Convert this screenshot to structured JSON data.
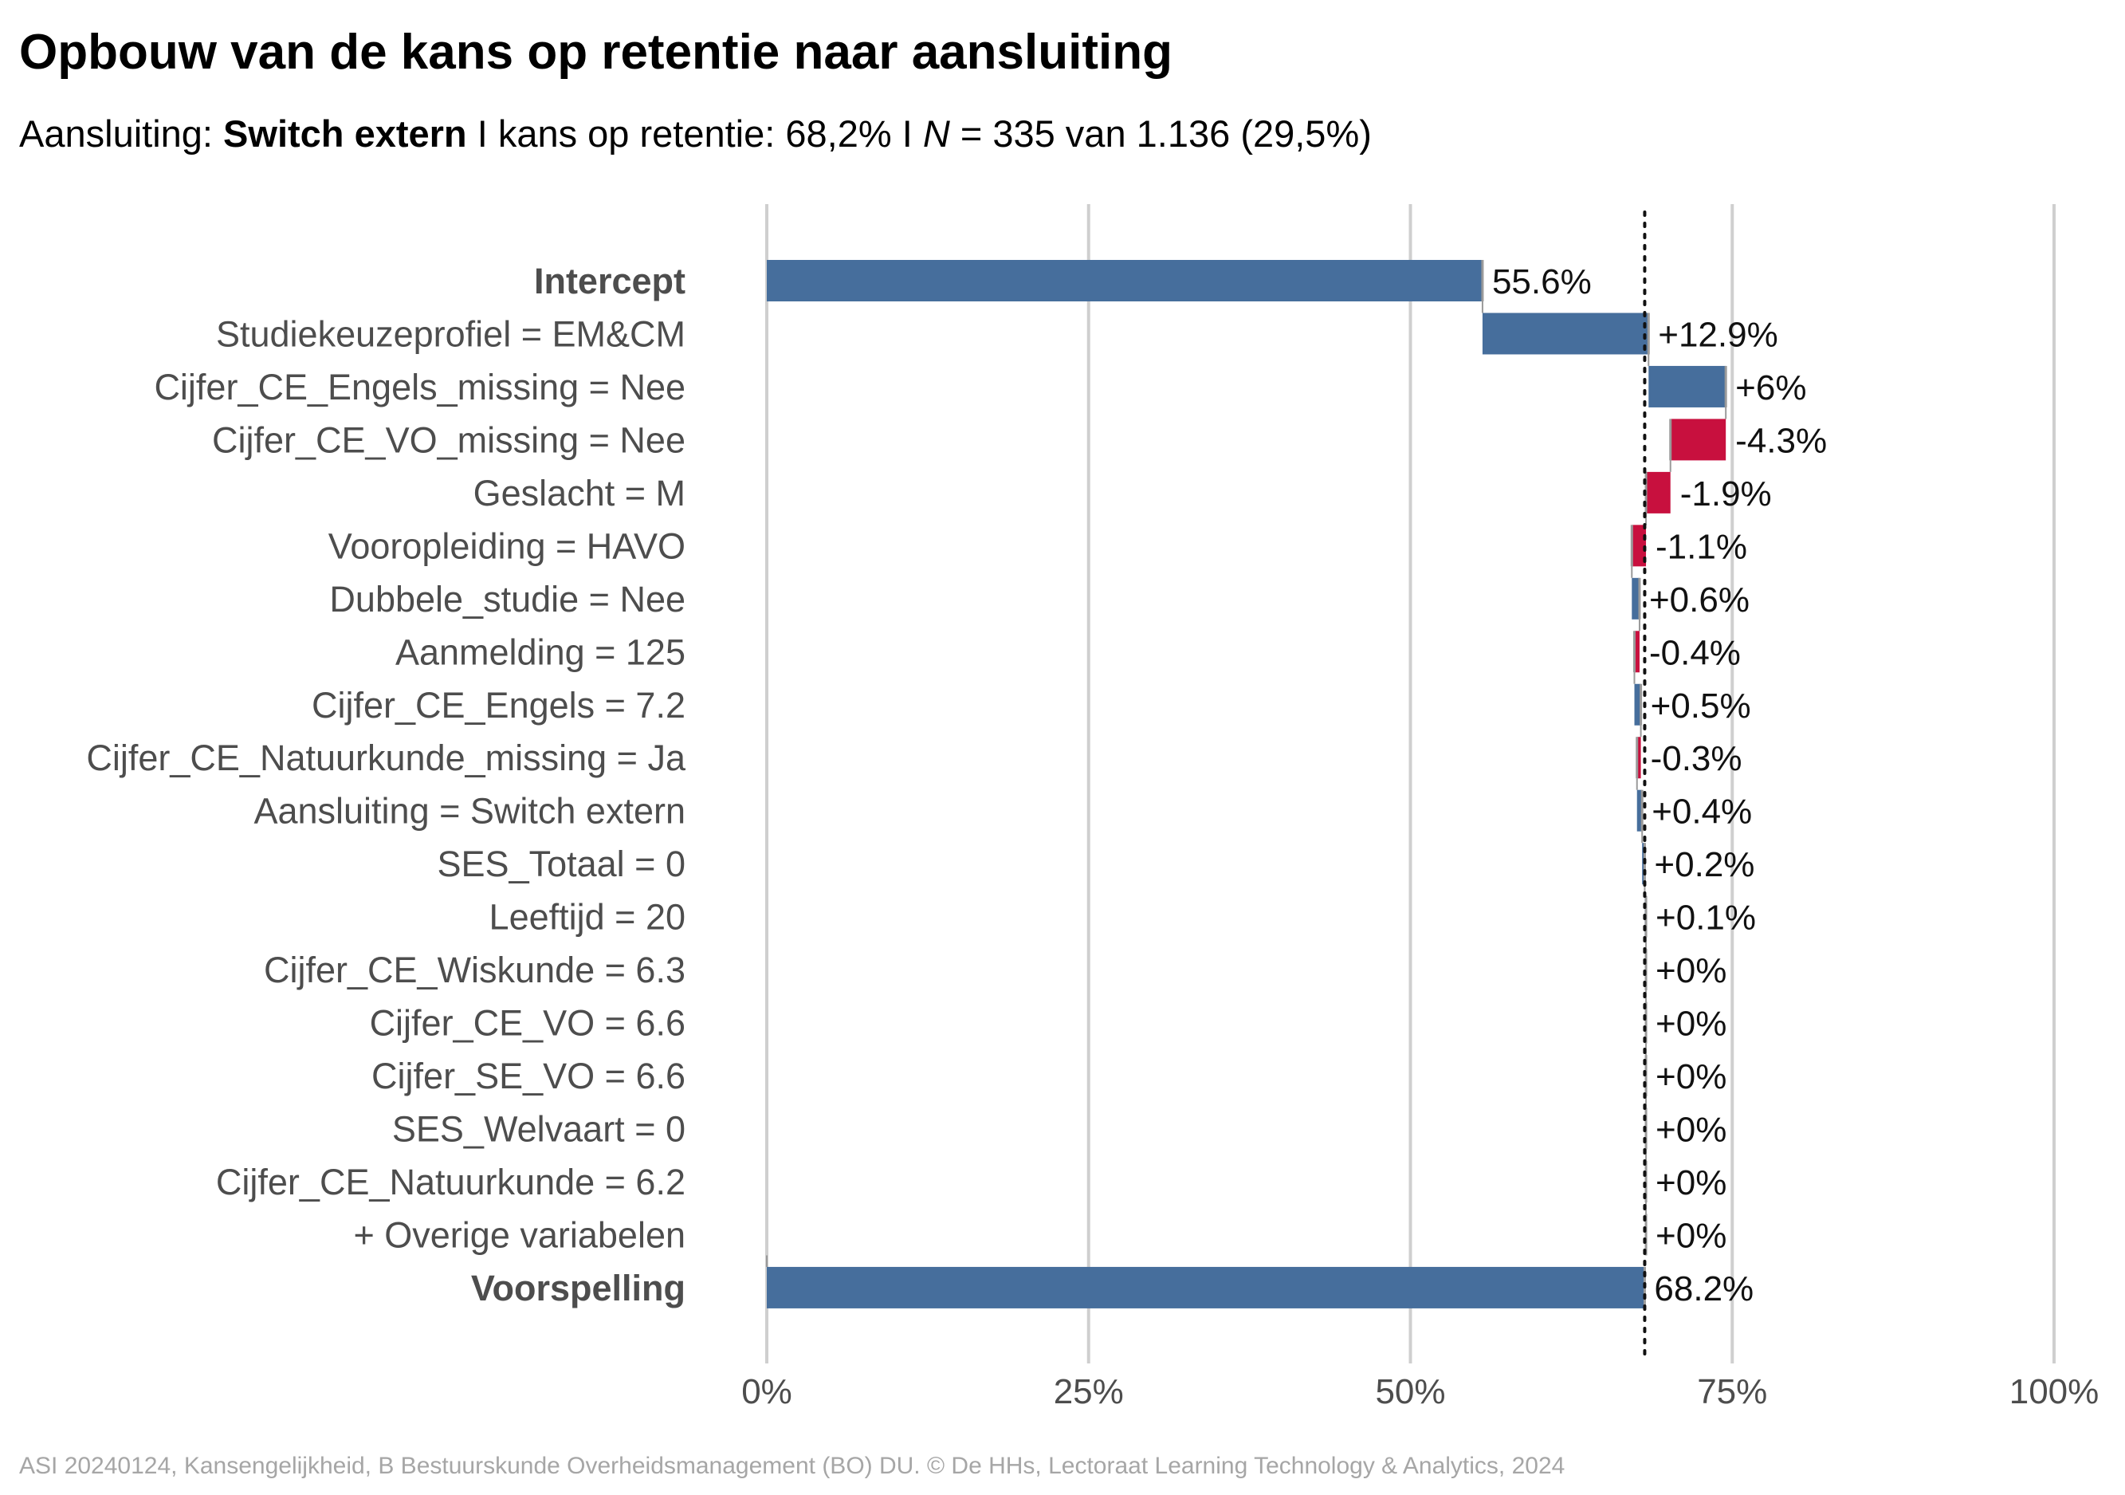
{
  "header": {
    "title": "Opbouw van de kans op retentie naar aansluiting",
    "subtitle_prefix": "Aansluiting: ",
    "subtitle_bold": "Switch extern",
    "subtitle_middle": " I kans op retentie: 68,2% I ",
    "subtitle_n": "N",
    "subtitle_suffix": " = 335 van 1.136 (29,5%)"
  },
  "caption": "ASI 20240124, Kansengelijkheid, B Bestuurskunde Overheidsmanagement (BO) DU. © De HHs, Lectoraat Learning Technology & Analytics, 2024",
  "colors": {
    "positive": "#466e9c",
    "negative": "#c8103e",
    "grid": "#cfcfcf",
    "label": "#4d4d4d"
  },
  "chart_data": {
    "type": "bar",
    "subtype": "waterfall",
    "orientation": "horizontal",
    "xlim": [
      0,
      100
    ],
    "x_ticks": [
      "0%",
      "25%",
      "50%",
      "75%",
      "100%"
    ],
    "x_tick_values": [
      0,
      25,
      50,
      75,
      100
    ],
    "reference_line": 68.2,
    "grid": true,
    "rows": [
      {
        "category": "Intercept",
        "value": 55.6,
        "label": "55.6%",
        "kind": "total",
        "bold": true
      },
      {
        "category": "Studiekeuzeprofiel = EM&CM",
        "value": 12.9,
        "label": "+12.9%",
        "kind": "step"
      },
      {
        "category": "Cijfer_CE_Engels_missing = Nee",
        "value": 6.0,
        "label": "+6%",
        "kind": "step"
      },
      {
        "category": "Cijfer_CE_VO_missing = Nee",
        "value": -4.3,
        "label": "-4.3%",
        "kind": "step"
      },
      {
        "category": "Geslacht = M",
        "value": -1.9,
        "label": "-1.9%",
        "kind": "step"
      },
      {
        "category": "Vooropleiding = HAVO",
        "value": -1.1,
        "label": "-1.1%",
        "kind": "step"
      },
      {
        "category": "Dubbele_studie = Nee",
        "value": 0.6,
        "label": "+0.6%",
        "kind": "step"
      },
      {
        "category": "Aanmelding = 125",
        "value": -0.4,
        "label": "-0.4%",
        "kind": "step"
      },
      {
        "category": "Cijfer_CE_Engels = 7.2",
        "value": 0.5,
        "label": "+0.5%",
        "kind": "step"
      },
      {
        "category": "Cijfer_CE_Natuurkunde_missing = Ja",
        "value": -0.3,
        "label": "-0.3%",
        "kind": "step"
      },
      {
        "category": "Aansluiting = Switch extern",
        "value": 0.4,
        "label": "+0.4%",
        "kind": "step"
      },
      {
        "category": "SES_Totaal = 0",
        "value": 0.2,
        "label": "+0.2%",
        "kind": "step"
      },
      {
        "category": "Leeftijd = 20",
        "value": 0.1,
        "label": "+0.1%",
        "kind": "step"
      },
      {
        "category": "Cijfer_CE_Wiskunde = 6.3",
        "value": 0.0,
        "label": "+0%",
        "kind": "step"
      },
      {
        "category": "Cijfer_CE_VO = 6.6",
        "value": 0.0,
        "label": "+0%",
        "kind": "step"
      },
      {
        "category": "Cijfer_SE_VO = 6.6",
        "value": 0.0,
        "label": "+0%",
        "kind": "step"
      },
      {
        "category": "SES_Welvaart = 0",
        "value": 0.0,
        "label": "+0%",
        "kind": "step"
      },
      {
        "category": "Cijfer_CE_Natuurkunde = 6.2",
        "value": 0.0,
        "label": "+0%",
        "kind": "step"
      },
      {
        "category": "+ Overige variabelen",
        "value": 0.0,
        "label": "+0%",
        "kind": "step"
      },
      {
        "category": "Voorspelling",
        "value": 68.2,
        "label": "68.2%",
        "kind": "total",
        "bold": true
      }
    ]
  }
}
